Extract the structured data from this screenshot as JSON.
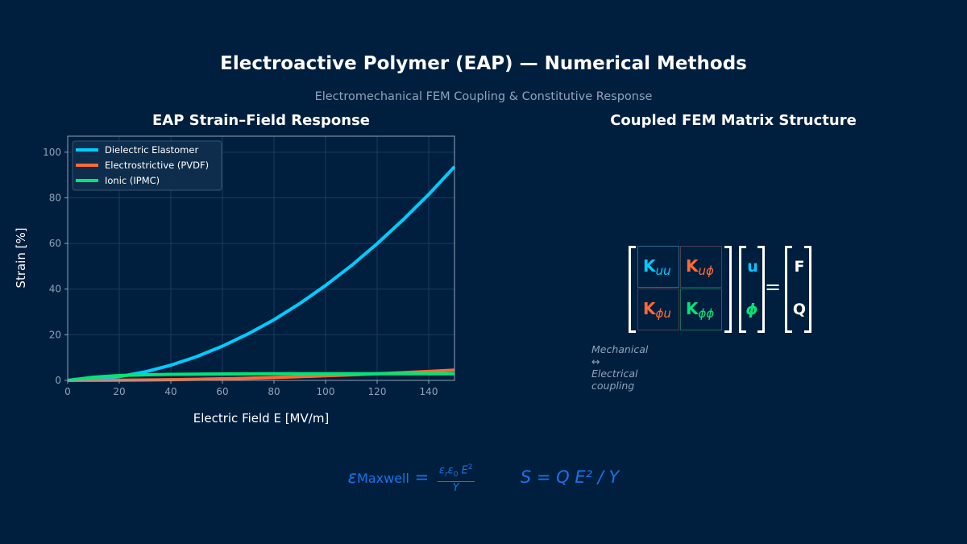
{
  "title": "Electroactive Polymer (EAP) — Numerical Methods",
  "subtitle": "Electromechanical FEM Coupling & Constitutive Response",
  "chart_data": {
    "type": "line",
    "title": "EAP Strain–Field Response",
    "xlabel": "Electric Field  E  [MV/m]",
    "ylabel": "Strain  [%]",
    "xlim": [
      0,
      150
    ],
    "ylim": [
      0,
      107
    ],
    "xticks": [
      0,
      20,
      40,
      60,
      80,
      100,
      120,
      140
    ],
    "yticks": [
      0,
      20,
      40,
      60,
      80,
      100
    ],
    "grid": true,
    "legend": "top-left",
    "x": [
      0,
      10,
      20,
      30,
      40,
      50,
      60,
      70,
      80,
      90,
      100,
      110,
      120,
      130,
      140,
      150
    ],
    "series": [
      {
        "name": "Dielectric Elastomer",
        "color": "#00ccff",
        "values": [
          0,
          0.42,
          1.66,
          3.74,
          6.66,
          10.4,
          15.0,
          20.4,
          26.6,
          33.7,
          41.6,
          50.3,
          59.9,
          70.3,
          81.5,
          93.6
        ]
      },
      {
        "name": "Electrostrictive (PVDF)",
        "color": "#ff6b35",
        "values": [
          0,
          0.02,
          0.08,
          0.18,
          0.32,
          0.5,
          0.72,
          0.98,
          1.28,
          1.62,
          2.0,
          2.42,
          2.88,
          3.38,
          3.92,
          4.5
        ]
      },
      {
        "name": "Ionic (IPMC)",
        "color": "#00e676",
        "values": [
          0,
          1.41,
          2.13,
          2.47,
          2.66,
          2.76,
          2.82,
          2.86,
          2.88,
          2.89,
          2.9,
          2.9,
          2.9,
          2.9,
          2.9,
          2.9
        ]
      }
    ]
  },
  "matrix": {
    "title": "Coupled FEM Matrix Structure",
    "cells": [
      {
        "k": "K",
        "sub": "uu",
        "color": "#00ccff",
        "bg": "#00507a"
      },
      {
        "k": "K",
        "sub": "uϕ",
        "color": "#ff6b35",
        "bg": "#3a2e40"
      },
      {
        "k": "K",
        "sub": "ϕu",
        "color": "#ff6b35",
        "bg": "#3a2e40"
      },
      {
        "k": "K",
        "sub": "ϕϕ",
        "color": "#00e676",
        "bg": "#004a45"
      }
    ],
    "unknowns": [
      "u",
      "ϕ"
    ],
    "rhs": [
      "F",
      "Q"
    ],
    "equals": "=",
    "caption": "Mechanical ↔ Electrical coupling"
  },
  "formula": {
    "eps": "ε",
    "maxwell": "Maxwell",
    "eq": "=",
    "num": "ε",
    "num_r": "r",
    "num_e": "ε",
    "num_0": "0",
    "num_E": "E",
    "num_sq": "2",
    "den": "Y",
    "second": "S = Q E² / Y"
  }
}
